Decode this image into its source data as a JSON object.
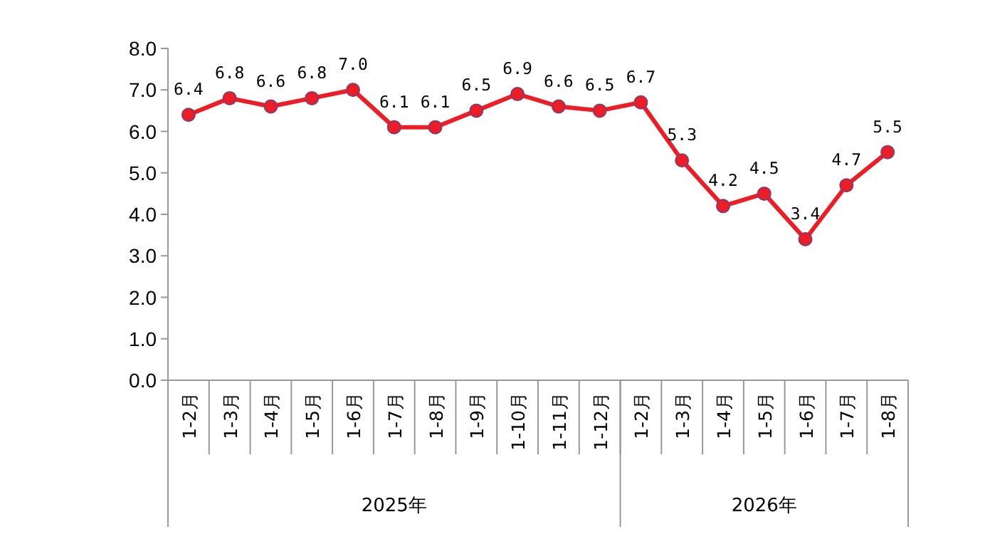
{
  "chart_data": {
    "type": "line",
    "categories": [
      "1-2月",
      "1-3月",
      "1-4月",
      "1-5月",
      "1-6月",
      "1-7月",
      "1-8月",
      "1-9月",
      "1-10月",
      "1-11月",
      "1-12月",
      "1-2月",
      "1-3月",
      "1-4月",
      "1-5月",
      "1-6月",
      "1-7月",
      "1-8月"
    ],
    "series": [
      {
        "color": "#ee1c25",
        "values": [
          6.4,
          6.8,
          6.6,
          6.8,
          7.0,
          6.1,
          6.1,
          6.5,
          6.9,
          6.6,
          6.5,
          6.7,
          5.3,
          4.2,
          4.5,
          3.4,
          4.7,
          5.5
        ]
      }
    ],
    "ylim": [
      0,
      8
    ],
    "yticks": [
      {
        "value": 0,
        "label": "0.0"
      },
      {
        "value": 1,
        "label": "1.0"
      },
      {
        "value": 2,
        "label": "2.0"
      },
      {
        "value": 3,
        "label": "3.0"
      },
      {
        "value": 4,
        "label": "4.0"
      },
      {
        "value": 5,
        "label": "5.0"
      },
      {
        "value": 6,
        "label": "6.0"
      },
      {
        "value": 7,
        "label": "7.0"
      },
      {
        "value": 8,
        "label": "8.0"
      }
    ],
    "value_labels": [
      "6.4",
      "6.8",
      "6.6",
      "6.8",
      "7.0",
      "6.1",
      "6.1",
      "6.5",
      "6.9",
      "6.6",
      "6.5",
      "6.7",
      "5.3",
      "4.2",
      "4.5",
      "3.4",
      "4.7",
      "5.5"
    ],
    "marker": "circle",
    "line_style": "solid",
    "grid": false,
    "annotations": [
      "2025年",
      "2026年"
    ]
  }
}
